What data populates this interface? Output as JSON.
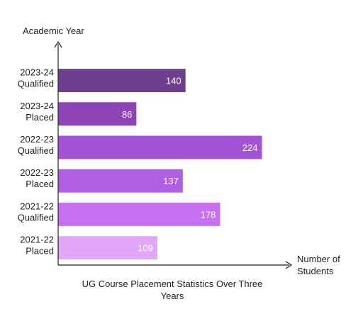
{
  "chart_data": {
    "type": "bar",
    "orientation": "horizontal",
    "categories": [
      [
        "2023-24",
        "Qualified"
      ],
      [
        "2023-24",
        "Placed"
      ],
      [
        "2022-23",
        "Qualified"
      ],
      [
        "2022-23",
        "Placed"
      ],
      [
        "2021-22",
        "Qualified"
      ],
      [
        "2021-22",
        "Placed"
      ]
    ],
    "values": [
      140,
      86,
      224,
      137,
      178,
      109
    ],
    "bar_colors": [
      "#6f3f8f",
      "#8e44b4",
      "#a253d6",
      "#b05ee3",
      "#c870f2",
      "#e1a6f7"
    ],
    "xlabel": [
      "Number of",
      "Students"
    ],
    "ylabel": "Academic Year",
    "caption": [
      "UG Course Placement Statistics Over Three",
      "Years"
    ],
    "xlim": [
      0,
      240
    ],
    "grid": false,
    "data_labels": true
  }
}
